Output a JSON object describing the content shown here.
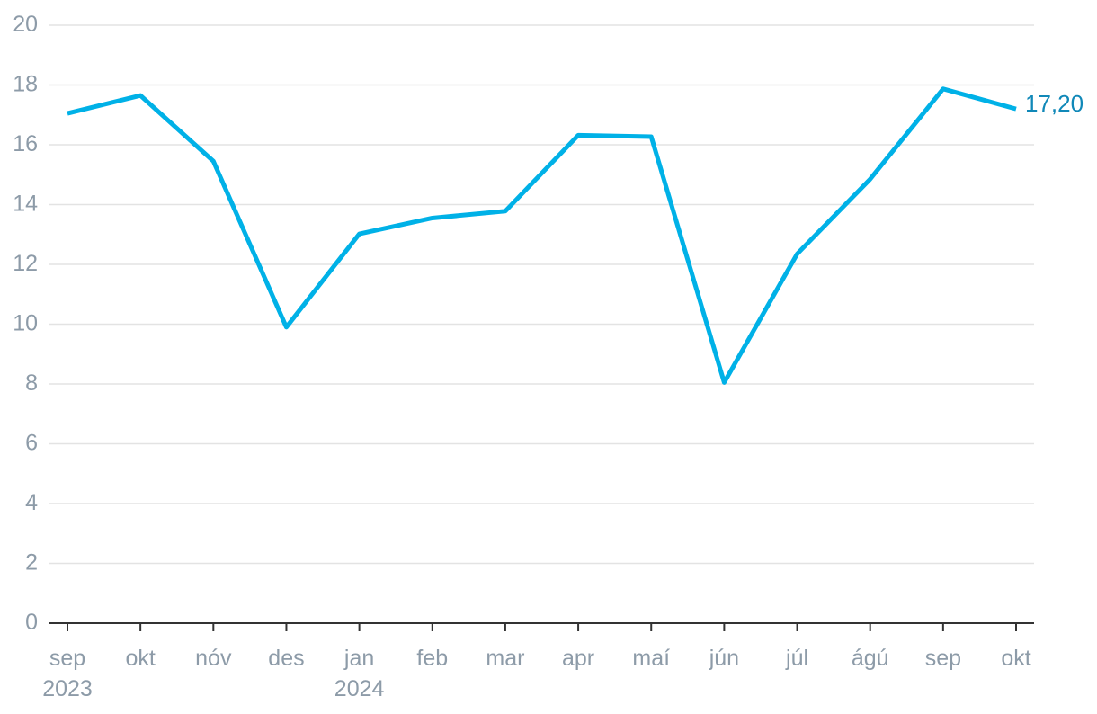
{
  "chart_data": {
    "type": "line",
    "categories": [
      "sep\n2023",
      "okt",
      "nóv",
      "des",
      "jan\n2024",
      "feb",
      "mar",
      "apr",
      "maí",
      "jún",
      "júl",
      "ágú",
      "sep",
      "okt"
    ],
    "series": [
      {
        "name": null,
        "color": "#00b1e7",
        "values": [
          17.05,
          17.65,
          15.45,
          9.9,
          13.02,
          13.55,
          13.78,
          16.32,
          16.27,
          8.05,
          12.35,
          14.85,
          17.87,
          17.2
        ],
        "value_labels": [
          null,
          null,
          null,
          null,
          null,
          null,
          null,
          null,
          null,
          null,
          null,
          null,
          null,
          "17,20"
        ]
      }
    ],
    "ylim": [
      0,
      20
    ],
    "yticks": [
      0,
      2,
      4,
      6,
      8,
      10,
      12,
      14,
      16,
      18,
      20
    ],
    "grid": true
  }
}
